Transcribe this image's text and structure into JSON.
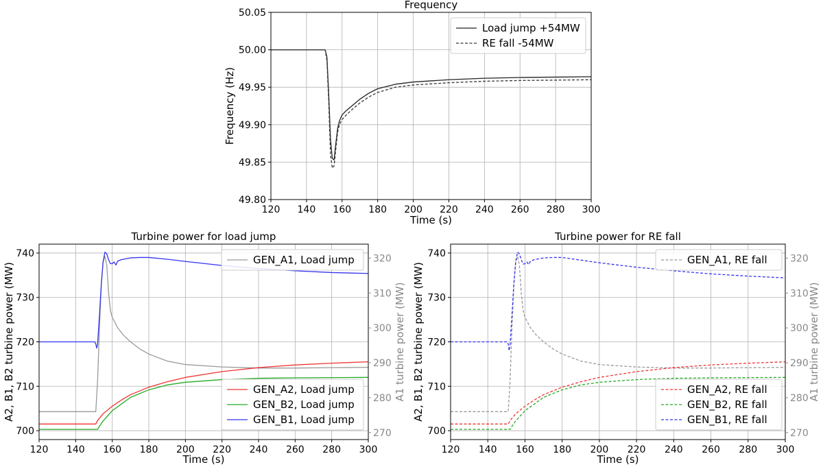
{
  "chart_data": [
    {
      "type": "line",
      "title": "Frequency",
      "xlabel": "Time (s)",
      "ylabel": "Frequency (Hz)",
      "xlim": [
        120,
        300
      ],
      "ylim": [
        49.8,
        50.05
      ],
      "xticks": [
        "120",
        "140",
        "160",
        "180",
        "200",
        "220",
        "240",
        "260",
        "280",
        "300"
      ],
      "yticks": [
        "49.80",
        "49.85",
        "49.90",
        "49.95",
        "50.00",
        "50.05"
      ],
      "grid": true,
      "legend_position": "top-right",
      "series": [
        {
          "name": "Load jump +54MW",
          "color": "#222222",
          "dash": "solid",
          "points": [
            [
              120,
              50.0
            ],
            [
              150.5,
              50.0
            ],
            [
              151.5,
              49.99
            ],
            [
              152.5,
              49.94
            ],
            [
              153.5,
              49.88
            ],
            [
              154.5,
              49.855
            ],
            [
              155.5,
              49.853
            ],
            [
              156.5,
              49.875
            ],
            [
              157.5,
              49.895
            ],
            [
              158.5,
              49.905
            ],
            [
              160,
              49.913
            ],
            [
              162,
              49.918
            ],
            [
              165,
              49.924
            ],
            [
              170,
              49.934
            ],
            [
              175,
              49.942
            ],
            [
              180,
              49.948
            ],
            [
              190,
              49.954
            ],
            [
              200,
              49.957
            ],
            [
              220,
              49.96
            ],
            [
              240,
              49.962
            ],
            [
              260,
              49.963
            ],
            [
              280,
              49.9635
            ],
            [
              300,
              49.964
            ]
          ]
        },
        {
          "name": "RE fall -54MW",
          "color": "#333333",
          "dash": "dashed",
          "points": [
            [
              120,
              50.0
            ],
            [
              150.5,
              50.0
            ],
            [
              151.5,
              49.985
            ],
            [
              152.5,
              49.93
            ],
            [
              153.5,
              49.86
            ],
            [
              154.5,
              49.842
            ],
            [
              155.5,
              49.845
            ],
            [
              156.5,
              49.868
            ],
            [
              157.5,
              49.89
            ],
            [
              158.5,
              49.9
            ],
            [
              160,
              49.907
            ],
            [
              162,
              49.912
            ],
            [
              165,
              49.919
            ],
            [
              170,
              49.929
            ],
            [
              175,
              49.937
            ],
            [
              180,
              49.943
            ],
            [
              190,
              49.95
            ],
            [
              200,
              49.953
            ],
            [
              220,
              49.956
            ],
            [
              240,
              49.958
            ],
            [
              260,
              49.959
            ],
            [
              280,
              49.9595
            ],
            [
              300,
              49.96
            ]
          ]
        }
      ]
    },
    {
      "type": "line",
      "title": "Turbine power for load jump",
      "xlabel": "Time (s)",
      "ylabel": "A2, B1, B2 turbine power (MW)",
      "ylabel_right": "A1 turbine power (MW)",
      "xlim": [
        120,
        300
      ],
      "ylim": [
        698,
        742
      ],
      "ylim_right": [
        268,
        324
      ],
      "xticks": [
        "120",
        "140",
        "160",
        "180",
        "200",
        "220",
        "240",
        "260",
        "280",
        "300"
      ],
      "yticks": [
        "700",
        "710",
        "720",
        "730",
        "740"
      ],
      "yticks_right": [
        "270",
        "280",
        "290",
        "300",
        "310",
        "320"
      ],
      "grid": true,
      "legend_positions": [
        "top-right (right axis)",
        "bottom-right (left axis)"
      ],
      "series": [
        {
          "name": "GEN_A1, Load jump",
          "axis": "right",
          "color": "#999999",
          "dash": "solid",
          "points": [
            [
              120,
              276
            ],
            [
              151,
              276
            ],
            [
              152,
              285
            ],
            [
              153,
              300
            ],
            [
              154,
              312
            ],
            [
              155,
              319
            ],
            [
              156,
              320.5
            ],
            [
              157,
              318
            ],
            [
              158,
              310
            ],
            [
              159,
              305
            ],
            [
              160,
              303
            ],
            [
              163,
              300
            ],
            [
              166,
              298
            ],
            [
              170,
              296
            ],
            [
              175,
              294
            ],
            [
              180,
              292.5
            ],
            [
              190,
              290.5
            ],
            [
              200,
              289.5
            ],
            [
              220,
              288.8
            ],
            [
              240,
              288.5
            ],
            [
              260,
              288.5
            ],
            [
              280,
              288.6
            ],
            [
              300,
              288.7
            ]
          ]
        },
        {
          "name": "GEN_A2, Load jump",
          "axis": "left",
          "color": "#ee3333",
          "dash": "solid",
          "points": [
            [
              120,
              701.5
            ],
            [
              151,
              701.5
            ],
            [
              152,
              702.3
            ],
            [
              155,
              703.8
            ],
            [
              160,
              705.5
            ],
            [
              165,
              706.9
            ],
            [
              170,
              708.1
            ],
            [
              180,
              709.8
            ],
            [
              190,
              711.0
            ],
            [
              200,
              712.0
            ],
            [
              220,
              713.3
            ],
            [
              240,
              714.2
            ],
            [
              260,
              714.8
            ],
            [
              280,
              715.2
            ],
            [
              300,
              715.5
            ]
          ]
        },
        {
          "name": "GEN_B2, Load jump",
          "axis": "left",
          "color": "#22aa22",
          "dash": "solid",
          "points": [
            [
              120,
              700.3
            ],
            [
              152,
              700.3
            ],
            [
              153,
              701.0
            ],
            [
              155,
              702.2
            ],
            [
              160,
              704.5
            ],
            [
              165,
              706.0
            ],
            [
              170,
              707.5
            ],
            [
              180,
              709.2
            ],
            [
              190,
              710.3
            ],
            [
              200,
              710.9
            ],
            [
              220,
              711.5
            ],
            [
              240,
              711.8
            ],
            [
              260,
              711.9
            ],
            [
              280,
              711.95
            ],
            [
              300,
              712.0
            ]
          ]
        },
        {
          "name": "GEN_B1, Load jump",
          "axis": "left",
          "color": "#3333ee",
          "dash": "solid",
          "points": [
            [
              120,
              720
            ],
            [
              150.5,
              720
            ],
            [
              151,
              719.5
            ],
            [
              151.5,
              718.6
            ],
            [
              152,
              719.5
            ],
            [
              153,
              726
            ],
            [
              154,
              733
            ],
            [
              155,
              738
            ],
            [
              156,
              740.2
            ],
            [
              157,
              739.8
            ],
            [
              158,
              738.5
            ],
            [
              159,
              737.6
            ],
            [
              160,
              737.6
            ],
            [
              161,
              738
            ],
            [
              162,
              737.3
            ],
            [
              163,
              738.2
            ],
            [
              165,
              738.5
            ],
            [
              170,
              738.9
            ],
            [
              175,
              739.0
            ],
            [
              180,
              739.0
            ],
            [
              190,
              738.6
            ],
            [
              200,
              738.1
            ],
            [
              220,
              737.2
            ],
            [
              240,
              736.5
            ],
            [
              260,
              736.0
            ],
            [
              280,
              735.6
            ],
            [
              300,
              735.4
            ]
          ]
        }
      ]
    },
    {
      "type": "line",
      "title": "Turbine power for RE fall",
      "xlabel": "Time (s)",
      "ylabel": "A2, B1, B2 turbine power (MW)",
      "ylabel_right": "A1 turbine power (MW)",
      "xlim": [
        120,
        300
      ],
      "ylim": [
        698,
        742
      ],
      "ylim_right": [
        268,
        324
      ],
      "xticks": [
        "120",
        "140",
        "160",
        "180",
        "200",
        "220",
        "240",
        "260",
        "280",
        "300"
      ],
      "yticks": [
        "700",
        "710",
        "720",
        "730",
        "740"
      ],
      "yticks_right": [
        "270",
        "280",
        "290",
        "300",
        "310",
        "320"
      ],
      "grid": true,
      "legend_positions": [
        "top-right (right axis)",
        "bottom-right (left axis)"
      ],
      "series": [
        {
          "name": "GEN_A1, RE fall",
          "axis": "right",
          "color": "#999999",
          "dash": "dashed",
          "points": [
            [
              120,
              276
            ],
            [
              151,
              276
            ],
            [
              152,
              285
            ],
            [
              153,
              300
            ],
            [
              154,
              312
            ],
            [
              155,
              319
            ],
            [
              156,
              320.5
            ],
            [
              157,
              318
            ],
            [
              158,
              310
            ],
            [
              159,
              305
            ],
            [
              160,
              303
            ],
            [
              163,
              300
            ],
            [
              166,
              298
            ],
            [
              170,
              296
            ],
            [
              175,
              294
            ],
            [
              180,
              292.5
            ],
            [
              190,
              290.5
            ],
            [
              200,
              289.5
            ],
            [
              220,
              288.8
            ],
            [
              240,
              288.5
            ],
            [
              260,
              288.5
            ],
            [
              280,
              288.6
            ],
            [
              300,
              288.7
            ]
          ]
        },
        {
          "name": "GEN_A2, RE fall",
          "axis": "left",
          "color": "#ee3333",
          "dash": "dashed",
          "points": [
            [
              120,
              701.5
            ],
            [
              151,
              701.5
            ],
            [
              152,
              702.3
            ],
            [
              155,
              703.8
            ],
            [
              160,
              705.5
            ],
            [
              165,
              706.9
            ],
            [
              170,
              708.1
            ],
            [
              180,
              709.8
            ],
            [
              190,
              711.0
            ],
            [
              200,
              712.0
            ],
            [
              220,
              713.3
            ],
            [
              240,
              714.2
            ],
            [
              260,
              714.8
            ],
            [
              280,
              715.2
            ],
            [
              300,
              715.5
            ]
          ]
        },
        {
          "name": "GEN_B2, RE fall",
          "axis": "left",
          "color": "#22aa22",
          "dash": "dashed",
          "points": [
            [
              120,
              700.3
            ],
            [
              152,
              700.3
            ],
            [
              153,
              701.0
            ],
            [
              155,
              702.2
            ],
            [
              160,
              704.5
            ],
            [
              165,
              706.0
            ],
            [
              170,
              707.5
            ],
            [
              180,
              709.2
            ],
            [
              190,
              710.3
            ],
            [
              200,
              710.9
            ],
            [
              220,
              711.5
            ],
            [
              240,
              711.8
            ],
            [
              260,
              711.9
            ],
            [
              280,
              711.95
            ],
            [
              300,
              712.0
            ]
          ]
        },
        {
          "name": "GEN_B1, RE fall",
          "axis": "left",
          "color": "#3333ee",
          "dash": "dashed",
          "points": [
            [
              120,
              720
            ],
            [
              150.5,
              720
            ],
            [
              151,
              719.5
            ],
            [
              151.5,
              718.0
            ],
            [
              152,
              719.5
            ],
            [
              153,
              726
            ],
            [
              154,
              733
            ],
            [
              155,
              738
            ],
            [
              156,
              740.2
            ],
            [
              157,
              739.8
            ],
            [
              158,
              738.5
            ],
            [
              159,
              737.5
            ],
            [
              160,
              737.6
            ],
            [
              161,
              738
            ],
            [
              162,
              737.4
            ],
            [
              163,
              738.2
            ],
            [
              165,
              738.5
            ],
            [
              170,
              738.9
            ],
            [
              175,
              739.0
            ],
            [
              180,
              739.0
            ],
            [
              190,
              738.4
            ],
            [
              200,
              737.8
            ],
            [
              220,
              736.8
            ],
            [
              240,
              736.0
            ],
            [
              260,
              735.3
            ],
            [
              280,
              734.8
            ],
            [
              300,
              734.4
            ]
          ]
        }
      ]
    }
  ]
}
